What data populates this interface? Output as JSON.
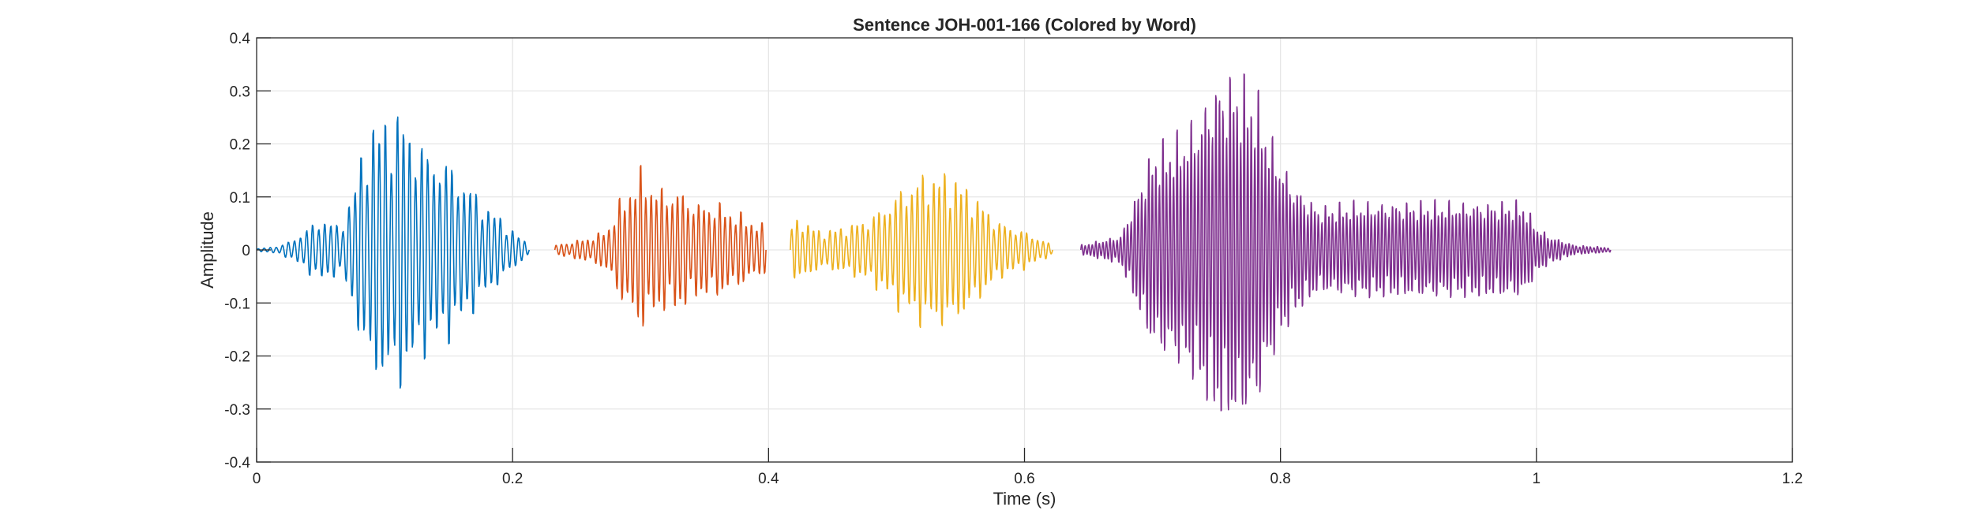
{
  "chart_data": {
    "type": "line",
    "title": "Sentence JOH-001-166 (Colored by Word)",
    "xlabel": "Time (s)",
    "ylabel": "Amplitude",
    "xlim": [
      0,
      1.2
    ],
    "ylim": [
      -0.4,
      0.4
    ],
    "xticks": [
      0,
      0.2,
      0.4,
      0.6,
      0.8,
      1,
      1.2
    ],
    "xtick_labels": [
      "0",
      "0.2",
      "0.4",
      "0.6",
      "0.8",
      "1",
      "1.2"
    ],
    "yticks": [
      0.4,
      0.3,
      0.2,
      0.1,
      0,
      -0.1,
      -0.2,
      -0.3,
      -0.4
    ],
    "ytick_labels": [
      "0.4",
      "0.3",
      "0.2",
      "0.1",
      "0",
      "-0.1",
      "-0.2",
      "-0.3",
      "-0.4"
    ],
    "grid": true,
    "series": [
      {
        "color": "#0072BD",
        "t_range": [
          0,
          0.213
        ],
        "cycles": 45,
        "envelope": [
          [
            0,
            0.002
          ],
          [
            0.02,
            0.01
          ],
          [
            0.035,
            0.035
          ],
          [
            0.05,
            0.07
          ],
          [
            0.065,
            0.05
          ],
          [
            0.075,
            0.12
          ],
          [
            0.085,
            0.25
          ],
          [
            0.1,
            0.29
          ],
          [
            0.115,
            0.29
          ],
          [
            0.13,
            0.22
          ],
          [
            0.145,
            0.2
          ],
          [
            0.16,
            0.16
          ],
          [
            0.175,
            0.11
          ],
          [
            0.19,
            0.07
          ],
          [
            0.205,
            0.03
          ],
          [
            0.213,
            0.01
          ]
        ]
      },
      {
        "color": "#D95319",
        "t_range": [
          0.233,
          0.398
        ],
        "cycles": 40,
        "envelope": [
          [
            0.233,
            0.01
          ],
          [
            0.25,
            0.02
          ],
          [
            0.265,
            0.03
          ],
          [
            0.275,
            0.05
          ],
          [
            0.285,
            0.11
          ],
          [
            0.3,
            0.17
          ],
          [
            0.315,
            0.13
          ],
          [
            0.33,
            0.13
          ],
          [
            0.345,
            0.1
          ],
          [
            0.36,
            0.1
          ],
          [
            0.375,
            0.08
          ],
          [
            0.39,
            0.06
          ],
          [
            0.398,
            0.05
          ]
        ]
      },
      {
        "color": "#EDB120",
        "t_range": [
          0.417,
          0.622
        ],
        "cycles": 48,
        "envelope": [
          [
            0.417,
            0.05
          ],
          [
            0.425,
            0.07
          ],
          [
            0.44,
            0.04
          ],
          [
            0.46,
            0.05
          ],
          [
            0.48,
            0.07
          ],
          [
            0.5,
            0.12
          ],
          [
            0.515,
            0.155
          ],
          [
            0.53,
            0.165
          ],
          [
            0.545,
            0.16
          ],
          [
            0.56,
            0.12
          ],
          [
            0.58,
            0.06
          ],
          [
            0.6,
            0.04
          ],
          [
            0.615,
            0.02
          ],
          [
            0.622,
            0.01
          ]
        ]
      },
      {
        "color": "#7E2F8E",
        "t_range": [
          0.644,
          1.058
        ],
        "cycles": 150,
        "envelope": [
          [
            0.644,
            0.01
          ],
          [
            0.66,
            0.02
          ],
          [
            0.675,
            0.03
          ],
          [
            0.685,
            0.1
          ],
          [
            0.7,
            0.21
          ],
          [
            0.72,
            0.24
          ],
          [
            0.735,
            0.28
          ],
          [
            0.75,
            0.36
          ],
          [
            0.765,
            0.37
          ],
          [
            0.78,
            0.34
          ],
          [
            0.795,
            0.22
          ],
          [
            0.81,
            0.14
          ],
          [
            0.83,
            0.09
          ],
          [
            0.86,
            0.1
          ],
          [
            0.9,
            0.1
          ],
          [
            0.94,
            0.1
          ],
          [
            0.97,
            0.1
          ],
          [
            0.99,
            0.1
          ],
          [
            1.0,
            0.05
          ],
          [
            1.01,
            0.03
          ],
          [
            1.03,
            0.01
          ],
          [
            1.058,
            0.005
          ]
        ]
      }
    ]
  }
}
